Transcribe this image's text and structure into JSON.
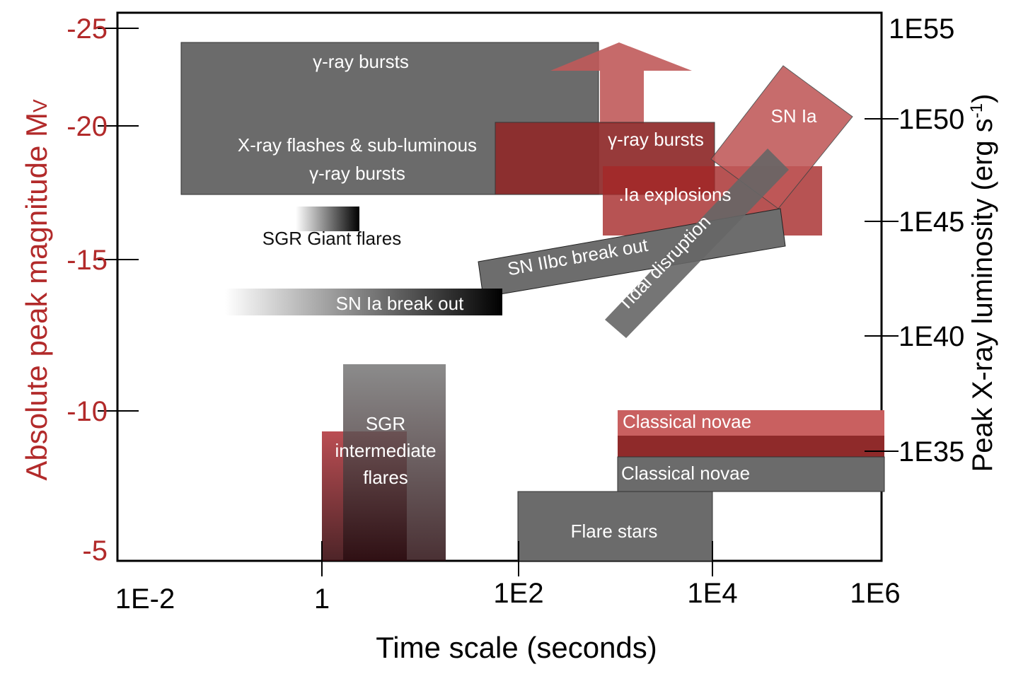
{
  "axes": {
    "left_label": "Absolute peak magnitude M",
    "left_label_sub": "V",
    "right_label": "Peak X-ray luminosity (erg s",
    "right_label_sup": "-1",
    "right_label_end": ")",
    "bottom_label": "Time scale (seconds)",
    "left_ticks": [
      "-25",
      "-20",
      "-15",
      "-10",
      "-5"
    ],
    "right_ticks": [
      "1E55",
      "1E50",
      "1E45",
      "1E40",
      "1E35"
    ],
    "bottom_ticks": [
      "1E-2",
      "1",
      "1E2",
      "1E4",
      "1E6"
    ]
  },
  "regions": {
    "grb_optical": "γ-ray bursts",
    "xrf_line1": "X-ray flashes & sub-luminous",
    "xrf_line2": "γ-ray bursts",
    "grb_xray": "γ-ray bursts",
    "sn_ia": "SN Ia",
    "ia_explosions": ".Ia explosions",
    "sgr_giant": "SGR Giant flares",
    "sn_iibc": "SN IIbc break out",
    "tidal": "Tidal disruption",
    "sn_ia_breakout": "SN Ia break out",
    "sgr_inter_1": "SGR",
    "sgr_inter_2": "intermediate",
    "sgr_inter_3": "flares",
    "novae_xray": "Classical novae",
    "novae_optical": "Classical novae",
    "flare_stars": "Flare stars"
  }
}
